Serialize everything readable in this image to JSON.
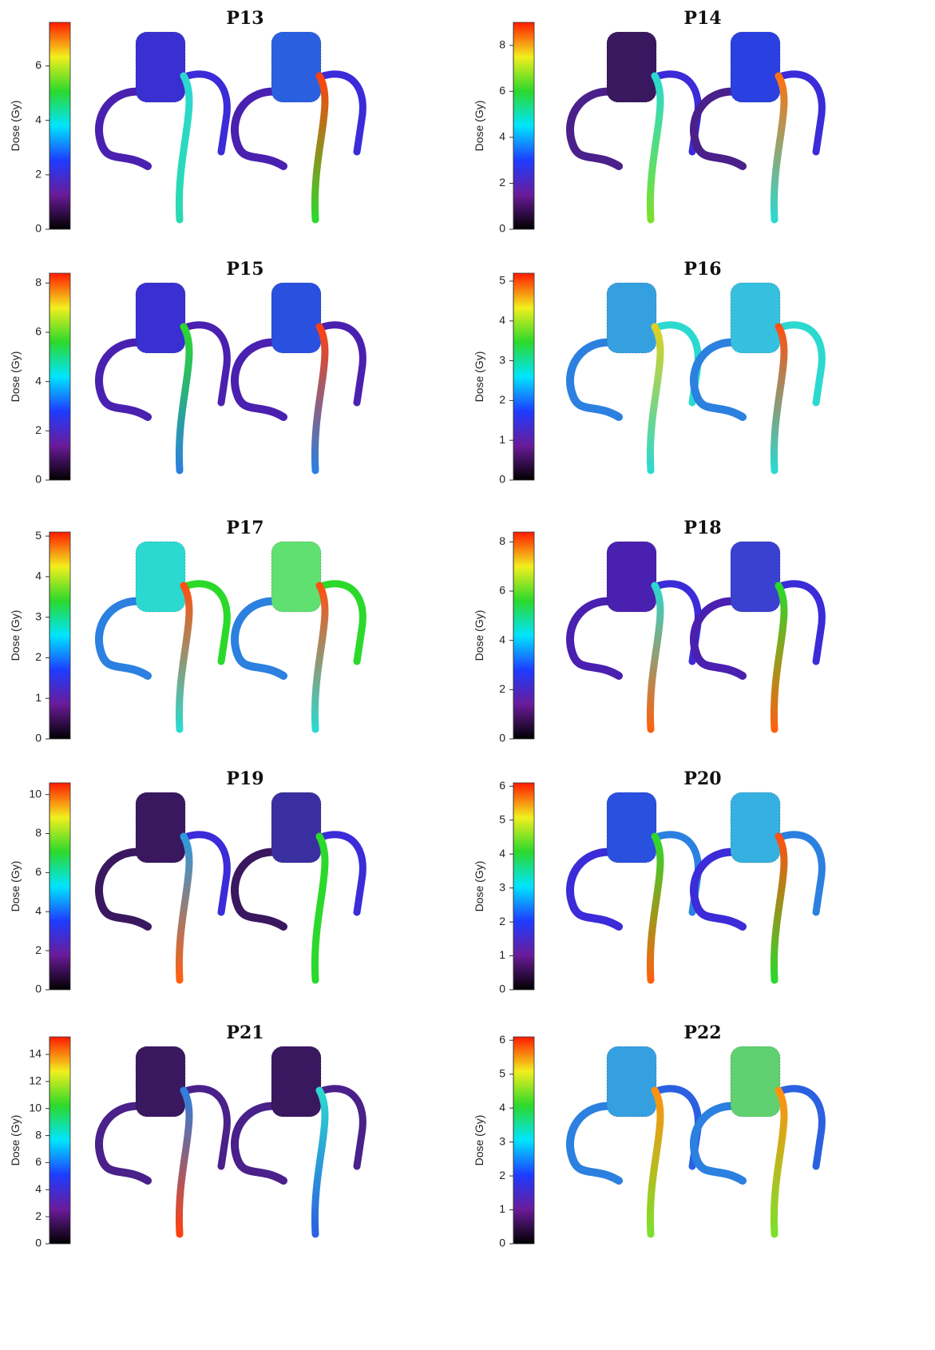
{
  "chart_data": [
    {
      "type": "colorbar",
      "title": "P13",
      "ylabel": "Dose (Gy)",
      "ylim": [
        0,
        7.6
      ],
      "yticks": [
        0,
        2,
        4,
        6
      ],
      "colormap": [
        "#000000",
        "#6a1b9a",
        "#1e3cff",
        "#00e5ff",
        "#2bd92b",
        "#f2ef1e",
        "#ff1a00"
      ]
    },
    {
      "type": "colorbar",
      "title": "P14",
      "ylabel": "Dose (Gy)",
      "ylim": [
        0,
        9.0
      ],
      "yticks": [
        0,
        2,
        4,
        6,
        8
      ],
      "colormap": [
        "#000000",
        "#6a1b9a",
        "#1e3cff",
        "#00e5ff",
        "#2bd92b",
        "#f2ef1e",
        "#ff1a00"
      ]
    },
    {
      "type": "colorbar",
      "title": "P15",
      "ylabel": "Dose (Gy)",
      "ylim": [
        0,
        8.4
      ],
      "yticks": [
        0,
        2,
        4,
        6,
        8
      ],
      "colormap": [
        "#000000",
        "#6a1b9a",
        "#1e3cff",
        "#00e5ff",
        "#2bd92b",
        "#f2ef1e",
        "#ff1a00"
      ]
    },
    {
      "type": "colorbar",
      "title": "P16",
      "ylabel": "Dose (Gy)",
      "ylim": [
        0,
        5.2
      ],
      "yticks": [
        0,
        1,
        2,
        3,
        4,
        5
      ],
      "colormap": [
        "#000000",
        "#6a1b9a",
        "#1e3cff",
        "#00e5ff",
        "#2bd92b",
        "#f2ef1e",
        "#ff1a00"
      ]
    },
    {
      "type": "colorbar",
      "title": "P17",
      "ylabel": "Dose (Gy)",
      "ylim": [
        0,
        5.1
      ],
      "yticks": [
        0,
        1,
        2,
        3,
        4,
        5
      ],
      "colormap": [
        "#000000",
        "#6a1b9a",
        "#1e3cff",
        "#00e5ff",
        "#2bd92b",
        "#f2ef1e",
        "#ff1a00"
      ]
    },
    {
      "type": "colorbar",
      "title": "P18",
      "ylabel": "Dose (Gy)",
      "ylim": [
        0,
        8.4
      ],
      "yticks": [
        0,
        2,
        4,
        6,
        8
      ],
      "colormap": [
        "#000000",
        "#6a1b9a",
        "#1e3cff",
        "#00e5ff",
        "#2bd92b",
        "#f2ef1e",
        "#ff1a00"
      ]
    },
    {
      "type": "colorbar",
      "title": "P19",
      "ylabel": "Dose (Gy)",
      "ylim": [
        0,
        10.6
      ],
      "yticks": [
        0,
        2,
        4,
        6,
        8,
        10
      ],
      "colormap": [
        "#000000",
        "#6a1b9a",
        "#1e3cff",
        "#00e5ff",
        "#2bd92b",
        "#f2ef1e",
        "#ff1a00"
      ]
    },
    {
      "type": "colorbar",
      "title": "P20",
      "ylabel": "Dose (Gy)",
      "ylim": [
        0,
        6.1
      ],
      "yticks": [
        0,
        1,
        2,
        3,
        4,
        5,
        6
      ],
      "colormap": [
        "#000000",
        "#6a1b9a",
        "#1e3cff",
        "#00e5ff",
        "#2bd92b",
        "#f2ef1e",
        "#ff1a00"
      ]
    },
    {
      "type": "colorbar",
      "title": "P21",
      "ylabel": "Dose (Gy)",
      "ylim": [
        0,
        15.3
      ],
      "yticks": [
        0,
        2,
        4,
        6,
        8,
        10,
        12,
        14
      ],
      "colormap": [
        "#000000",
        "#6a1b9a",
        "#1e3cff",
        "#00e5ff",
        "#2bd92b",
        "#f2ef1e",
        "#ff1a00"
      ]
    },
    {
      "type": "colorbar",
      "title": "P22",
      "ylabel": "Dose (Gy)",
      "ylim": [
        0,
        6.1
      ],
      "yticks": [
        0,
        1,
        2,
        3,
        4,
        5,
        6
      ],
      "colormap": [
        "#000000",
        "#6a1b9a",
        "#1e3cff",
        "#00e5ff",
        "#2bd92b",
        "#f2ef1e",
        "#ff1a00"
      ]
    }
  ]
}
